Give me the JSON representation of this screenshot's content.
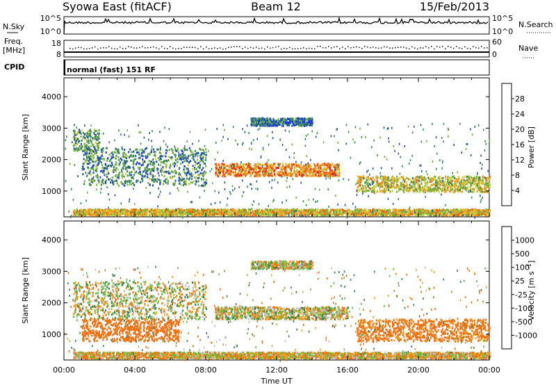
{
  "header": {
    "station": "Syowa East (fitACF)",
    "beam": "Beam 12",
    "date": "15/Feb/2013"
  },
  "top_panels": {
    "nsky": {
      "label": "N.Sky",
      "ticks_left": [
        "10^5",
        "10^0"
      ],
      "label_right": "N.Search",
      "ticks_right": [
        "10^5",
        "10^0"
      ]
    },
    "freq": {
      "label_line1": "Freq.",
      "label_line2": "[MHz]",
      "ticks_left": [
        "18",
        "8"
      ],
      "label_right": "Nave",
      "ticks_right": [
        "60",
        "0"
      ]
    },
    "cpid": {
      "label": "CPID",
      "text": "normal (fast) 151 RF"
    }
  },
  "chart_data": [
    {
      "type": "heatmap",
      "name": "power",
      "xlabel": "Time UT",
      "ylabel": "Slant Range [km]",
      "x_ticks": [
        "00:00",
        "04:00",
        "08:00",
        "12:00",
        "16:00",
        "20:00",
        "00:00"
      ],
      "xlim": [
        0,
        24
      ],
      "y_ticks": [
        1000,
        2000,
        3000,
        4000
      ],
      "ylim": [
        180,
        4600
      ],
      "colorbar": {
        "label": "Power [dB]",
        "ticks": [
          "4",
          "8",
          "12",
          "16",
          "20",
          "24",
          "28"
        ],
        "colors": [
          "#1030ff",
          "#2050b0",
          "#3a8a50",
          "#70b040",
          "#c8d040",
          "#f0a020",
          "#f06010",
          "#e82010"
        ]
      },
      "features": [
        {
          "t_start": 0.5,
          "t_end": 2.0,
          "range_low": 2300,
          "range_high": 3000,
          "value": 12
        },
        {
          "t_start": 1.0,
          "t_end": 8.0,
          "range_low": 1200,
          "range_high": 2400,
          "value": 10
        },
        {
          "t_start": 8.5,
          "t_end": 15.5,
          "range_low": 1500,
          "range_high": 1900,
          "value": 24
        },
        {
          "t_start": 10.5,
          "t_end": 14.0,
          "range_low": 3100,
          "range_high": 3350,
          "value": 8
        },
        {
          "t_start": 16.5,
          "t_end": 24.0,
          "range_low": 1000,
          "range_high": 1500,
          "value": 18
        },
        {
          "t_start": 0.5,
          "t_end": 24.0,
          "range_low": 250,
          "range_high": 450,
          "value": 20
        }
      ]
    },
    {
      "type": "heatmap",
      "name": "velocity",
      "xlabel": "Time UT",
      "ylabel": "Slant Range [km]",
      "x_ticks": [
        "00:00",
        "04:00",
        "08:00",
        "12:00",
        "16:00",
        "20:00",
        "00:00"
      ],
      "xlim": [
        0,
        24
      ],
      "y_ticks": [
        1000,
        2000,
        3000,
        4000
      ],
      "ylim": [
        180,
        4600
      ],
      "colorbar": {
        "label": "Velocity [m s^-1]",
        "ticks": [
          "1000",
          "500",
          "100",
          "25",
          "-25",
          "-100",
          "-500",
          "-1000"
        ],
        "colors": [
          "#1a3cc8",
          "#2a60a8",
          "#3a8050",
          "#60c040",
          "#c0c0c0",
          "#f0a020",
          "#f07010",
          "#f04010",
          "#e81010"
        ]
      },
      "features": [
        {
          "t_start": 0.5,
          "t_end": 8.0,
          "range_low": 1500,
          "range_high": 2700,
          "value": 0
        },
        {
          "t_start": 1.0,
          "t_end": 6.5,
          "range_low": 800,
          "range_high": 1500,
          "value": -300
        },
        {
          "t_start": 8.5,
          "t_end": 16.0,
          "range_low": 1500,
          "range_high": 1900,
          "value": 0
        },
        {
          "t_start": 10.5,
          "t_end": 14.0,
          "range_low": 3100,
          "range_high": 3350,
          "value": 0
        },
        {
          "t_start": 16.5,
          "t_end": 24.0,
          "range_low": 800,
          "range_high": 1500,
          "value": -200
        },
        {
          "t_start": 0.5,
          "t_end": 24.0,
          "range_low": 250,
          "range_high": 450,
          "value": -50
        }
      ]
    }
  ]
}
